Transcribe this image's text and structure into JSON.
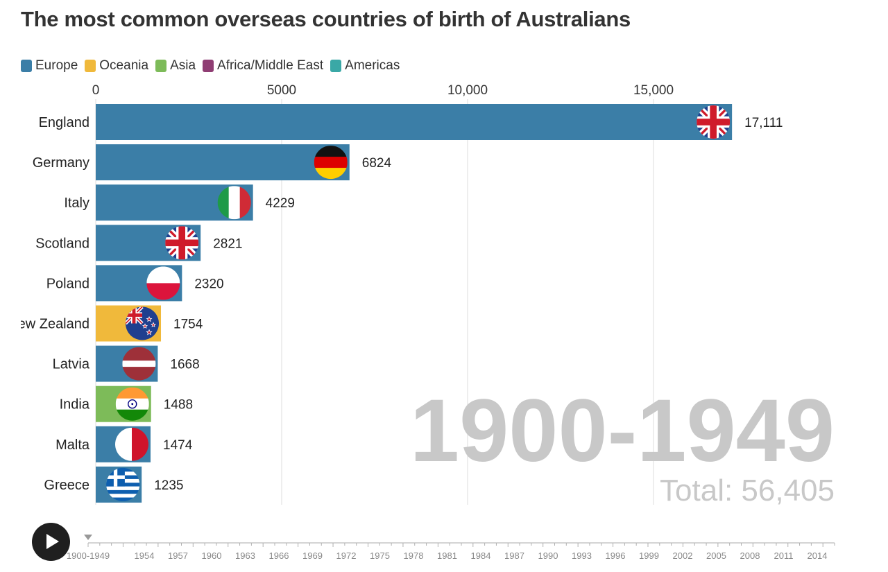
{
  "title": "The most common overseas countries of birth of Australians",
  "legend": [
    {
      "label": "Europe",
      "color": "#3b7ea7"
    },
    {
      "label": "Oceania",
      "color": "#f0b93b"
    },
    {
      "label": "Asia",
      "color": "#7dbb59"
    },
    {
      "label": "Africa/Middle East",
      "color": "#8f3d73"
    },
    {
      "label": "Americas",
      "color": "#3aa8a6"
    }
  ],
  "chart_data": {
    "type": "bar",
    "orientation": "horizontal",
    "title": "The most common overseas countries of birth of Australians",
    "period": "1900-1949",
    "total_label": "Total: 56,405",
    "xlim": [
      0,
      20000
    ],
    "x_ticks": [
      {
        "value": 0,
        "label": "0"
      },
      {
        "value": 5000,
        "label": "5000"
      },
      {
        "value": 10000,
        "label": "10,000"
      },
      {
        "value": 15000,
        "label": "15,000"
      }
    ],
    "grid": true,
    "legend_position": "top-left",
    "categories": [
      "England",
      "Germany",
      "Italy",
      "Scotland",
      "Poland",
      "New Zealand",
      "Latvia",
      "India",
      "Malta",
      "Greece"
    ],
    "values": [
      17111,
      6824,
      4229,
      2821,
      2320,
      1754,
      1668,
      1488,
      1474,
      1235
    ],
    "value_labels": [
      "17,111",
      "6824",
      "4229",
      "2821",
      "2320",
      "1754",
      "1668",
      "1488",
      "1474",
      "1235"
    ],
    "regions": [
      "Europe",
      "Europe",
      "Europe",
      "Europe",
      "Europe",
      "Oceania",
      "Europe",
      "Asia",
      "Europe",
      "Europe"
    ],
    "flags": [
      "uk-flag-icon",
      "germany-flag-icon",
      "italy-flag-icon",
      "uk-flag-icon",
      "poland-flag-icon",
      "new-zealand-flag-icon",
      "latvia-flag-icon",
      "india-flag-icon",
      "malta-flag-icon",
      "greece-flag-icon"
    ]
  },
  "timeline": {
    "labels": [
      "1900-1949",
      "1954",
      "1957",
      "1960",
      "1963",
      "1966",
      "1969",
      "1972",
      "1975",
      "1978",
      "1981",
      "1984",
      "1987",
      "1990",
      "1993",
      "1996",
      "1999",
      "2002",
      "2005",
      "2008",
      "2011",
      "2014"
    ],
    "selected": "1900-1949",
    "play_icon": "play-icon"
  }
}
